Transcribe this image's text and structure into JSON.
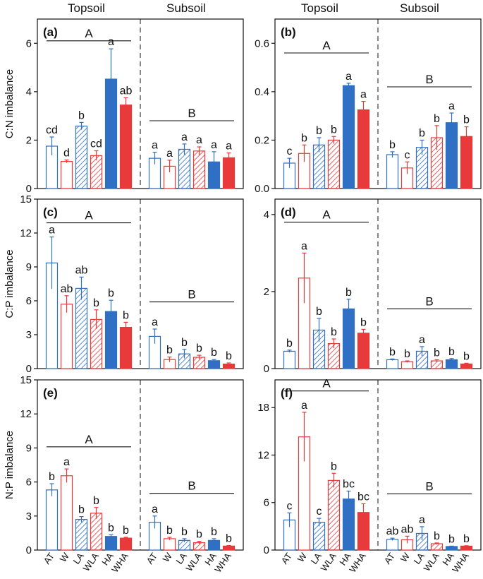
{
  "header": {
    "left_topsoil": "Topsoil",
    "left_subsoil": "Subsoil",
    "right_topsoil": "Topsoil",
    "right_subsoil": "Subsoil"
  },
  "colors": {
    "blue": "#2f6fc4",
    "red": "#e8393b",
    "axis": "#111111"
  },
  "chart_data": [
    {
      "type": "bar",
      "panel": "(a)",
      "ylabel": "C:N imbalance",
      "ylim": [
        0,
        7
      ],
      "yticks": [
        0,
        2,
        4,
        6
      ],
      "yticklabels": [
        "0",
        "2",
        "4",
        "6"
      ],
      "categories": [
        "AT",
        "W",
        "LA",
        "WLA",
        "HA",
        "WHA"
      ],
      "groups": [
        {
          "name": "Topsoil",
          "values": [
            1.75,
            1.12,
            2.58,
            1.36,
            4.52,
            3.45
          ],
          "errors": [
            0.38,
            0.06,
            0.15,
            0.2,
            1.25,
            0.3
          ],
          "letters": [
            "cd",
            "d",
            "b",
            "cd",
            "a",
            "ab"
          ],
          "group_letter": "A",
          "group_line_value": 6.1
        },
        {
          "name": "Subsoil",
          "values": [
            1.25,
            0.92,
            1.62,
            1.55,
            1.1,
            1.27
          ],
          "errors": [
            0.25,
            0.25,
            0.22,
            0.17,
            0.42,
            0.2
          ],
          "letters": [
            "a",
            "a",
            "a",
            "a",
            "a",
            "a"
          ],
          "group_letter": "B",
          "group_line_value": 2.8
        }
      ]
    },
    {
      "type": "bar",
      "panel": "(b)",
      "ylabel": "",
      "ylim": [
        0,
        0.7
      ],
      "yticks": [
        0,
        0.2,
        0.4,
        0.6
      ],
      "yticklabels": [
        "0.0",
        "0.2",
        "0.4",
        "0.6"
      ],
      "categories": [
        "AT",
        "W",
        "LA",
        "WLA",
        "HA",
        "WHA"
      ],
      "groups": [
        {
          "name": "Topsoil",
          "values": [
            0.105,
            0.145,
            0.18,
            0.2,
            0.425,
            0.325
          ],
          "errors": [
            0.02,
            0.035,
            0.03,
            0.015,
            0.01,
            0.035
          ],
          "letters": [
            "c",
            "b",
            "b",
            "b",
            "a",
            "a"
          ],
          "group_letter": "A",
          "group_line_value": 0.56
        },
        {
          "name": "Subsoil",
          "values": [
            0.14,
            0.085,
            0.17,
            0.21,
            0.272,
            0.215
          ],
          "errors": [
            0.012,
            0.025,
            0.03,
            0.05,
            0.04,
            0.04
          ],
          "letters": [
            "b",
            "c",
            "b",
            "b",
            "a",
            "b"
          ],
          "group_letter": "B",
          "group_line_value": 0.42
        }
      ]
    },
    {
      "type": "bar",
      "panel": "(c)",
      "ylabel": "C:P imbalance",
      "ylim": [
        0,
        15
      ],
      "yticks": [
        0,
        3,
        6,
        9,
        12,
        15
      ],
      "yticklabels": [
        "0",
        "3",
        "6",
        "9",
        "12",
        "15"
      ],
      "categories": [
        "AT",
        "W",
        "LA",
        "WLA",
        "HA",
        "WHA"
      ],
      "groups": [
        {
          "name": "Topsoil",
          "values": [
            9.35,
            5.7,
            7.1,
            4.35,
            5.05,
            3.65
          ],
          "errors": [
            2.3,
            0.75,
            1.0,
            0.85,
            1.0,
            0.45
          ],
          "letters": [
            "a",
            "ab",
            "ab",
            "b",
            "b",
            "b"
          ],
          "group_letter": "A",
          "group_line_value": 12.9
        },
        {
          "name": "Subsoil",
          "values": [
            2.85,
            0.8,
            1.3,
            1.0,
            0.7,
            0.4
          ],
          "errors": [
            0.65,
            0.22,
            0.4,
            0.18,
            0.1,
            0.1
          ],
          "letters": [
            "a",
            "b",
            "b",
            "b",
            "b",
            "b"
          ],
          "group_letter": "B",
          "group_line_value": 5.9
        }
      ]
    },
    {
      "type": "bar",
      "panel": "(d)",
      "ylabel": "",
      "ylim": [
        0,
        4.4
      ],
      "yticks": [
        0,
        2,
        4
      ],
      "yticklabels": [
        "0",
        "2",
        "4"
      ],
      "categories": [
        "AT",
        "W",
        "LA",
        "WLA",
        "HA",
        "WHA"
      ],
      "groups": [
        {
          "name": "Topsoil",
          "values": [
            0.45,
            2.35,
            1.0,
            0.65,
            1.55,
            0.92
          ],
          "errors": [
            0.03,
            0.65,
            0.3,
            0.12,
            0.25,
            0.1
          ],
          "letters": [
            "b",
            "a",
            "b",
            "b",
            "b",
            "b"
          ],
          "group_letter": "A",
          "group_line_value": 3.8
        },
        {
          "name": "Subsoil",
          "values": [
            0.23,
            0.18,
            0.45,
            0.2,
            0.23,
            0.12
          ],
          "errors": [
            0.02,
            0.02,
            0.12,
            0.03,
            0.03,
            0.02
          ],
          "letters": [
            "b",
            "b",
            "a",
            "b",
            "b",
            "b"
          ],
          "group_letter": "B",
          "group_line_value": 1.55
        }
      ]
    },
    {
      "type": "bar",
      "panel": "(e)",
      "ylabel": "N:P imbalance",
      "ylim": [
        0,
        15
      ],
      "yticks": [
        0,
        3,
        6,
        9,
        12,
        15
      ],
      "yticklabels": [
        "0",
        "3",
        "6",
        "9",
        "12",
        "15"
      ],
      "categories": [
        "AT",
        "W",
        "LA",
        "WLA",
        "HA",
        "WHA"
      ],
      "groups": [
        {
          "name": "Topsoil",
          "values": [
            5.3,
            6.55,
            2.7,
            3.25,
            1.2,
            1.05
          ],
          "errors": [
            0.55,
            0.6,
            0.25,
            0.5,
            0.15,
            0.08
          ],
          "letters": [
            "b",
            "a",
            "b",
            "b",
            "b",
            "b"
          ],
          "group_letter": "A",
          "group_line_value": 9.1
        },
        {
          "name": "Subsoil",
          "values": [
            2.45,
            1.0,
            0.85,
            0.65,
            0.85,
            0.35
          ],
          "errors": [
            0.55,
            0.12,
            0.15,
            0.12,
            0.15,
            0.05
          ],
          "letters": [
            "a",
            "b",
            "b",
            "b",
            "b",
            "b"
          ],
          "group_letter": "B",
          "group_line_value": 5.0
        }
      ]
    },
    {
      "type": "bar",
      "panel": "(f)",
      "ylabel": "",
      "ylim": [
        0,
        21.5
      ],
      "yticks": [
        0,
        6,
        12,
        18
      ],
      "yticklabels": [
        "0",
        "6",
        "12",
        "18"
      ],
      "categories": [
        "AT",
        "W",
        "LA",
        "WLA",
        "HA",
        "WHA"
      ],
      "groups": [
        {
          "name": "Topsoil",
          "values": [
            3.8,
            14.3,
            3.5,
            8.8,
            6.45,
            4.75
          ],
          "errors": [
            0.9,
            3.1,
            0.5,
            0.9,
            1.0,
            1.1
          ],
          "letters": [
            "c",
            "a",
            "c",
            "b",
            "bc",
            "bc"
          ],
          "group_letter": "A",
          "group_line_value": 20.1
        },
        {
          "name": "Subsoil",
          "values": [
            1.35,
            1.3,
            2.1,
            0.8,
            0.45,
            0.5
          ],
          "errors": [
            0.15,
            0.45,
            0.85,
            0.1,
            0.05,
            0.05
          ],
          "letters": [
            "ab",
            "ab",
            "a",
            "b",
            "b",
            "b"
          ],
          "group_letter": "B",
          "group_line_value": 7.1
        }
      ]
    }
  ]
}
